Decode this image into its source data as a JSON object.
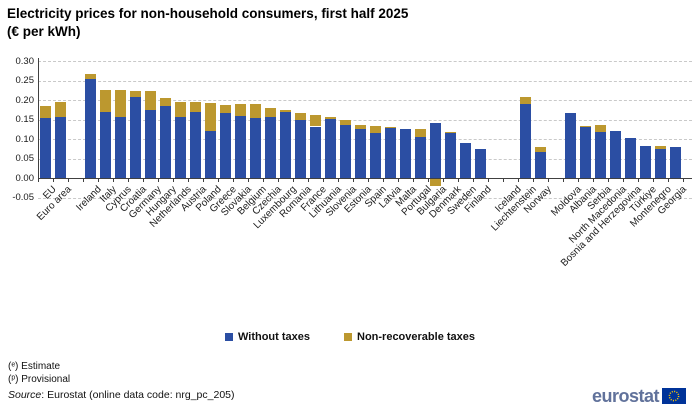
{
  "title": {
    "line1": "Electricity prices for non-household consumers, first half 2025",
    "line2": "(€ per kWh)"
  },
  "chart_data": {
    "type": "bar",
    "stacked": true,
    "title": "Electricity prices for non-household consumers, first half 2025 (€ per kWh)",
    "xlabel": "",
    "ylabel": "",
    "ylim": [
      -0.05,
      0.3
    ],
    "ytick_labels": [
      "0.30",
      "0.25",
      "0.20",
      "0.15",
      "0.10",
      "0.05",
      "0.00",
      "-0.05"
    ],
    "grid": "horizontal-dashed",
    "legend_position": "bottom-center",
    "categories": [
      "EU",
      "Euro area",
      "Ireland",
      "Italy",
      "Cyprus",
      "Croatia",
      "Germany",
      "Hungary",
      "Netherlands",
      "Austria",
      "Poland",
      "Greece",
      "Slovakia",
      "Belgium",
      "Czechia",
      "Luxembourg",
      "Romania",
      "France",
      "Lithuania",
      "Slovenia",
      "Estonia",
      "Spain",
      "Latvia",
      "Malta",
      "Portugal",
      "Bulgaria",
      "Denmark",
      "Sweden",
      "Finland",
      "Iceland",
      "Liechtenstein",
      "Norway",
      "Moldova",
      "Albania",
      "Serbia",
      "North Macedonia",
      "Bosnia and Herzegovina",
      "Türkiye",
      "Montenegro",
      "Georgia"
    ],
    "group_breaks_after_indices": [
      1,
      28,
      31
    ],
    "no_data_categories": [
      "Iceland"
    ],
    "series": [
      {
        "name": "Without taxes",
        "color": "#2b4ea3",
        "values": [
          0.153,
          0.157,
          0.254,
          0.169,
          0.157,
          0.208,
          0.175,
          0.185,
          0.157,
          0.169,
          0.121,
          0.166,
          0.159,
          0.153,
          0.156,
          0.17,
          0.149,
          0.132,
          0.152,
          0.136,
          0.126,
          0.116,
          0.128,
          0.127,
          0.106,
          0.14,
          0.115,
          0.091,
          0.074,
          null,
          0.19,
          0.067,
          0.166,
          0.13,
          0.118,
          0.12,
          0.103,
          0.082,
          0.074,
          0.079
        ]
      },
      {
        "name": "Non-recoverable taxes",
        "color": "#bc982f",
        "values": [
          0.032,
          0.037,
          0.012,
          0.058,
          0.068,
          0.015,
          0.047,
          0.02,
          0.038,
          0.026,
          0.072,
          0.021,
          0.031,
          0.036,
          0.023,
          0.005,
          0.017,
          0.03,
          0.004,
          0.014,
          0.011,
          0.018,
          0.002,
          0,
          0.019,
          -0.018,
          0.002,
          0,
          0,
          null,
          0.017,
          0.012,
          0,
          0.004,
          0.017,
          0,
          0,
          0,
          0.007,
          0
        ]
      }
    ]
  },
  "footnotes": [
    {
      "text": "(ᵉ) Estimate"
    },
    {
      "text": "(ᵖ) Provisional"
    }
  ],
  "source": {
    "label": "Source",
    "rest": ": Eurostat (online data code: nrg_pc_205)"
  },
  "logo": {
    "text": "eurostat",
    "text_color": "#61729b",
    "flag_blue": "#003399",
    "star_yellow": "#ffcc00"
  }
}
